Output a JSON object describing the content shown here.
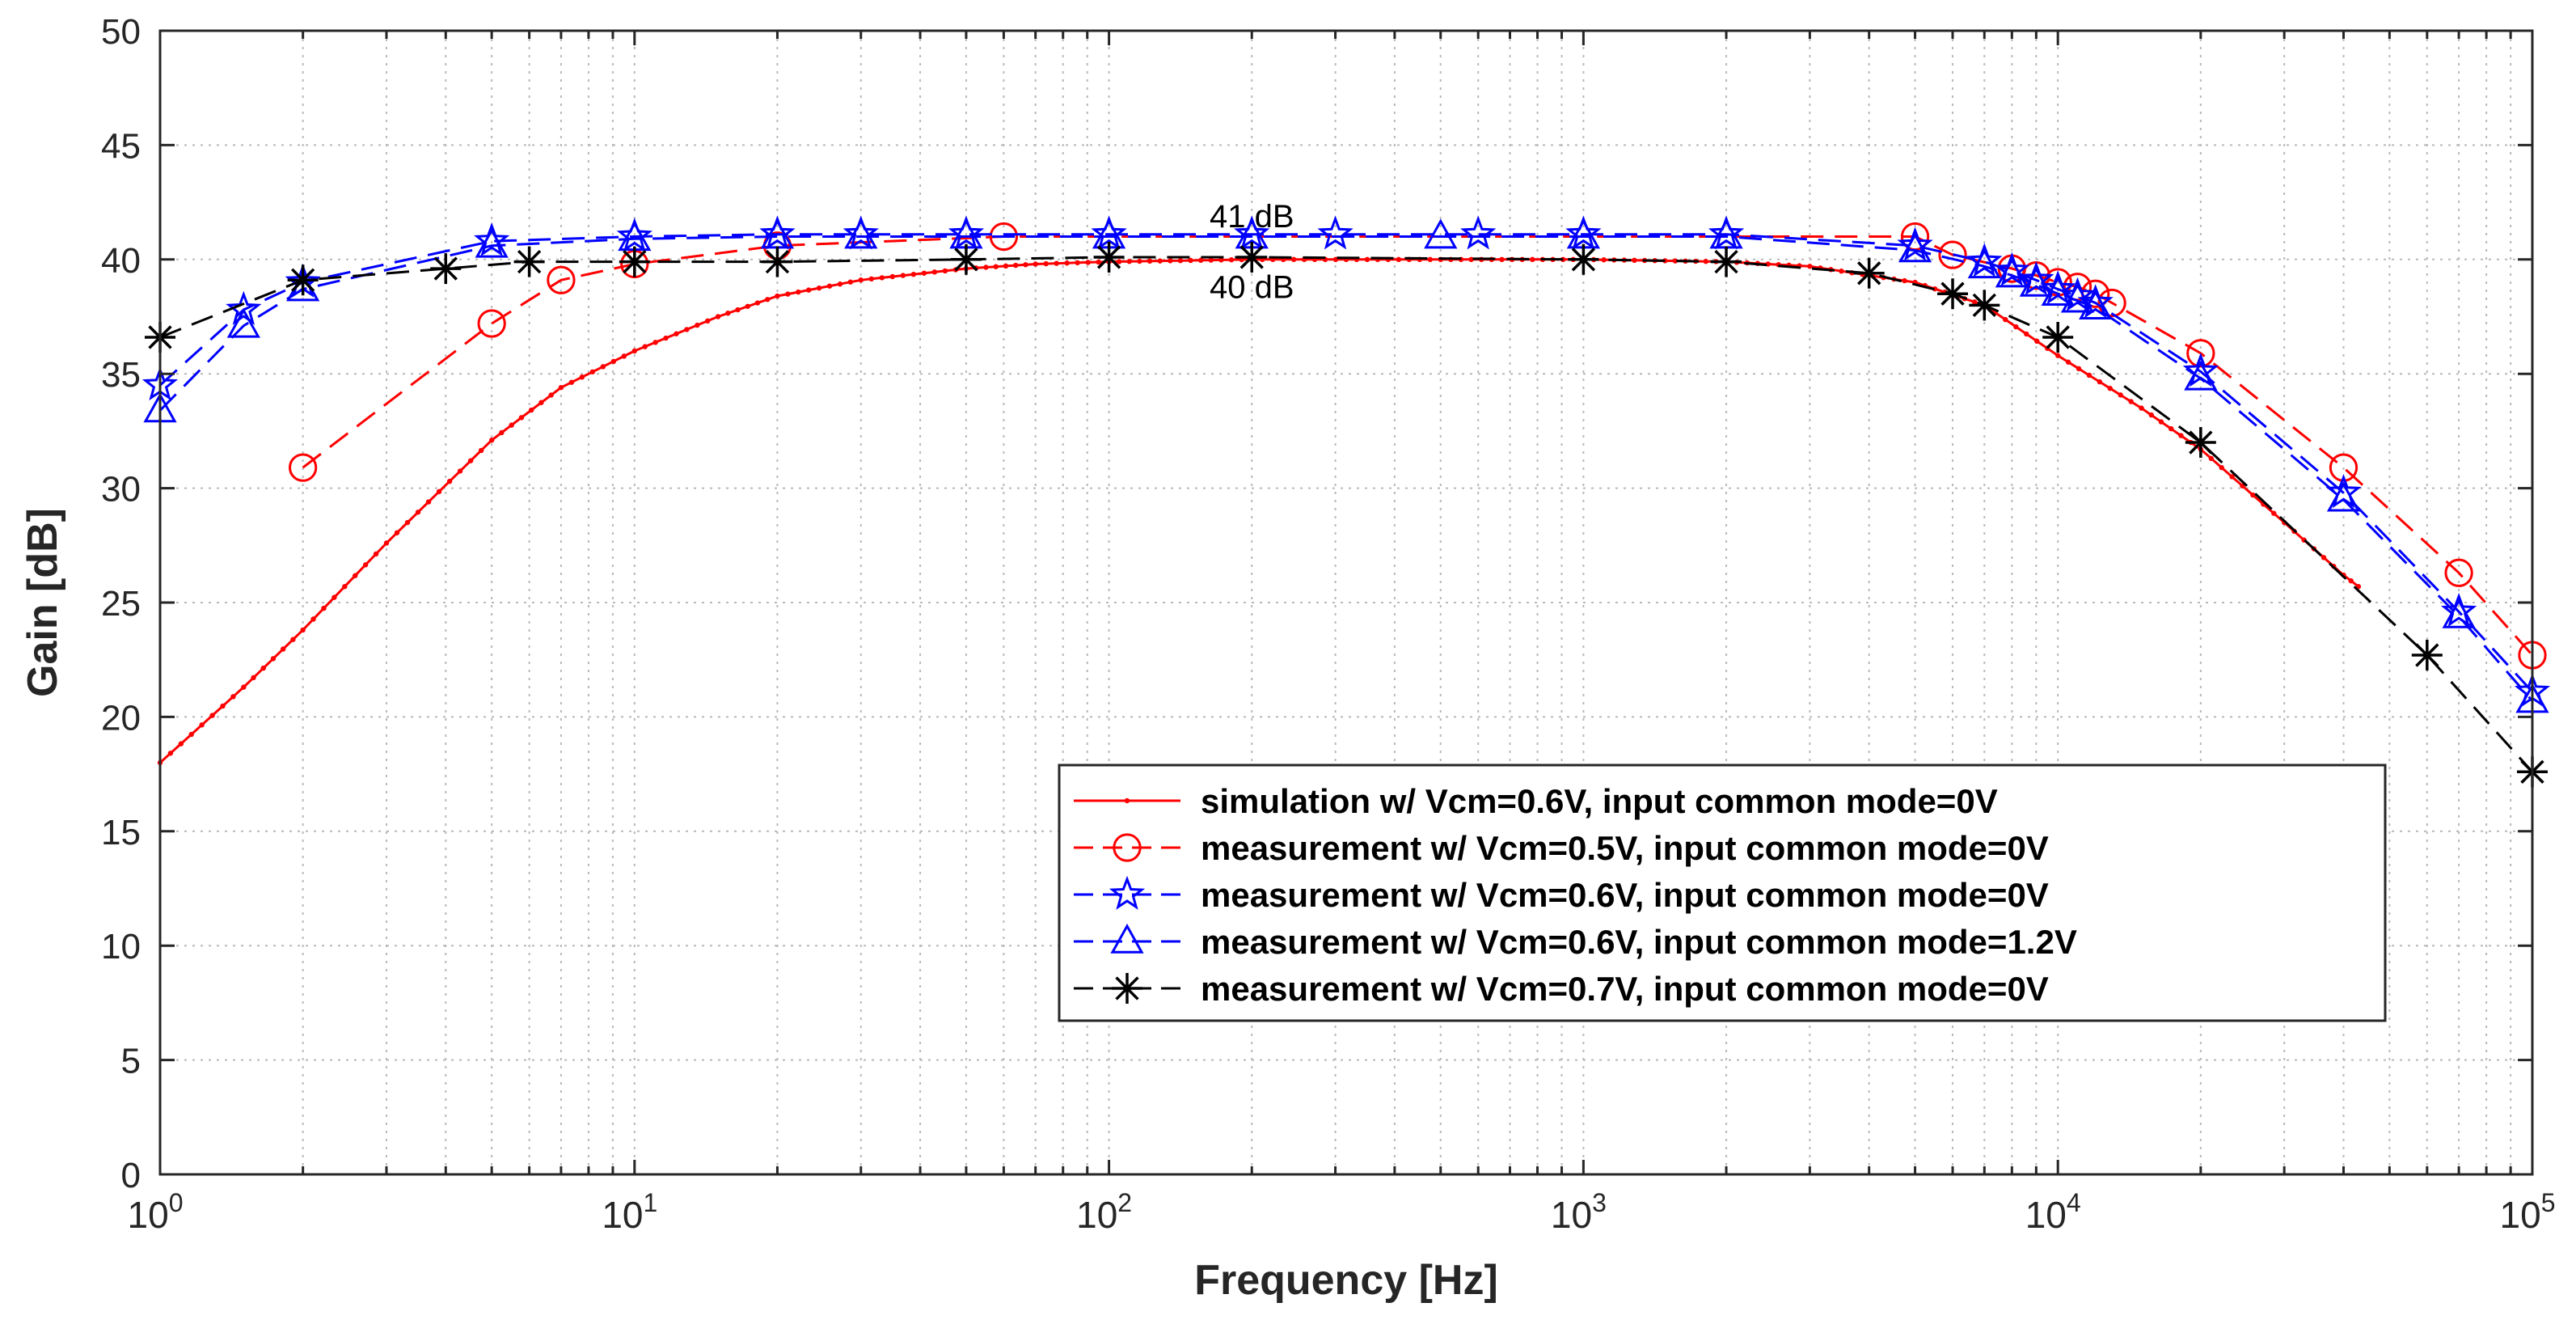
{
  "chart_data": {
    "type": "line",
    "title": "",
    "xlabel": "Frequency [Hz]",
    "ylabel": "Gain [dB]",
    "xscale": "log",
    "xlim": [
      1,
      100000
    ],
    "ylim": [
      0,
      50
    ],
    "grid": true,
    "legend_position": "bottom-right",
    "x_tick_labels": [
      {
        "base": "10",
        "exp": "0"
      },
      {
        "base": "10",
        "exp": "1"
      },
      {
        "base": "10",
        "exp": "2"
      },
      {
        "base": "10",
        "exp": "3"
      },
      {
        "base": "10",
        "exp": "4"
      },
      {
        "base": "10",
        "exp": "5"
      }
    ],
    "y_tick_labels": [
      "0",
      "5",
      "10",
      "15",
      "20",
      "25",
      "30",
      "35",
      "40",
      "45",
      "50"
    ],
    "annotations": [
      {
        "text": "41 dB",
        "x": 200,
        "y": 41.9
      },
      {
        "text": "40 dB",
        "x": 200,
        "y": 38.8
      }
    ],
    "series": [
      {
        "name": "simulation w/ Vcm=0.6V, input common mode=0V",
        "color": "#ff0000",
        "line_style": "solid",
        "marker": "dot",
        "x": [
          1,
          1.5,
          2,
          3,
          5,
          7,
          10,
          15,
          20,
          30,
          50,
          70,
          100,
          200,
          500,
          1000,
          2000,
          3000,
          5000,
          7000,
          10000,
          15000,
          20000,
          30000,
          40000,
          43000
        ],
        "y": [
          18,
          21.3,
          23.8,
          27.6,
          32.1,
          34.4,
          36.0,
          37.5,
          38.4,
          39.1,
          39.6,
          39.8,
          39.9,
          40.0,
          40.0,
          40.0,
          39.9,
          39.7,
          39.0,
          38.0,
          35.8,
          33.5,
          31.7,
          28.5,
          26.2,
          25.7
        ]
      },
      {
        "name": "measurement w/ Vcm=0.5V, input common mode=0V",
        "color": "#ff0000",
        "line_style": "dashed",
        "marker": "circle",
        "x": [
          2,
          5,
          7,
          10,
          20,
          60,
          5000,
          6000,
          8000,
          9000,
          10000,
          11000,
          12000,
          13000,
          20000,
          40000,
          70000,
          100000
        ],
        "y": [
          30.9,
          37.2,
          39.1,
          39.8,
          40.6,
          41.0,
          41.0,
          40.2,
          39.6,
          39.3,
          39.0,
          38.8,
          38.5,
          38.1,
          35.9,
          30.9,
          26.3,
          22.7
        ]
      },
      {
        "name": "measurement w/ Vcm=0.6V, input common mode=0V",
        "color": "#0000ff",
        "line_style": "dashed",
        "marker": "star",
        "x": [
          1,
          1.5,
          2,
          5,
          10,
          20,
          30,
          50,
          100,
          200,
          300,
          600,
          1000,
          2000,
          5000,
          7000,
          8000,
          9000,
          10000,
          11000,
          12000,
          20000,
          40000,
          70000,
          100000
        ],
        "y": [
          34.5,
          37.8,
          39.0,
          40.8,
          41.0,
          41.1,
          41.1,
          41.1,
          41.1,
          41.1,
          41.1,
          41.1,
          41.1,
          41.1,
          40.6,
          39.9,
          39.5,
          39.1,
          38.7,
          38.4,
          38.1,
          35.1,
          29.8,
          24.6,
          21.1
        ]
      },
      {
        "name": "measurement w/ Vcm=0.6V, input common mode=1.2V",
        "color": "#0000ff",
        "line_style": "dashed",
        "marker": "triangle",
        "x": [
          1,
          1.5,
          2,
          5,
          10,
          20,
          30,
          50,
          100,
          200,
          500,
          1000,
          2000,
          5000,
          7000,
          8000,
          9000,
          10000,
          11000,
          12000,
          20000,
          40000,
          70000,
          100000
        ],
        "y": [
          33.4,
          37.1,
          38.7,
          40.6,
          40.9,
          41.0,
          41.0,
          41.0,
          41.0,
          41.0,
          41.0,
          41.0,
          41.0,
          40.4,
          39.7,
          39.3,
          38.9,
          38.5,
          38.2,
          37.9,
          34.8,
          29.5,
          24.4,
          20.7
        ]
      },
      {
        "name": "measurement w/ Vcm=0.7V, input common mode=0V",
        "color": "#000000",
        "line_style": "dashed",
        "marker": "asterisk",
        "x": [
          1,
          2,
          4,
          6,
          10,
          20,
          50,
          100,
          200,
          1000,
          2000,
          4000,
          6000,
          7000,
          10000,
          20000,
          60000,
          100000
        ],
        "y": [
          36.6,
          39.1,
          39.6,
          39.9,
          39.9,
          39.9,
          40.0,
          40.1,
          40.1,
          40.0,
          39.9,
          39.4,
          38.5,
          38.0,
          36.6,
          32.0,
          22.7,
          17.6
        ]
      }
    ]
  }
}
